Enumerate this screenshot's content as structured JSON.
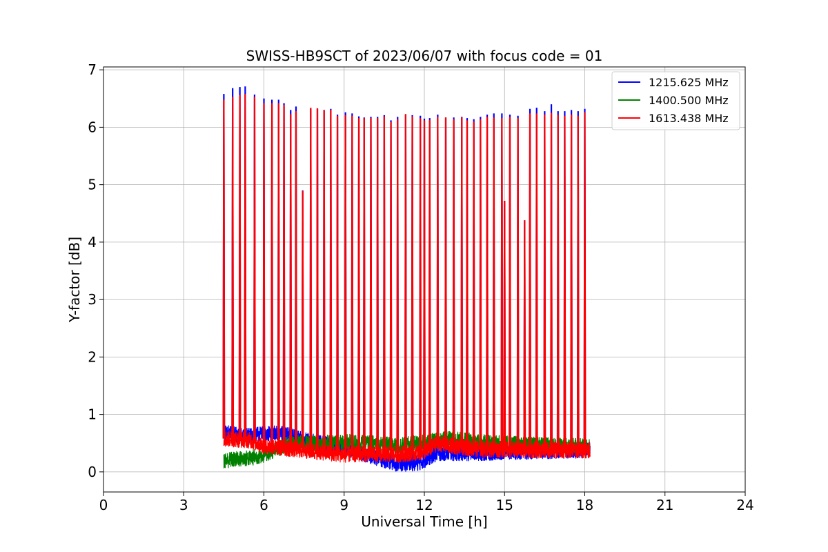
{
  "chart_data": {
    "type": "line",
    "title": "SWISS-HB9SCT of 2023/06/07 with focus code = 01",
    "xlabel": "Universal Time [h]",
    "ylabel": "Y-factor [dB]",
    "xlim": [
      0,
      24
    ],
    "ylim": [
      -0.35,
      7.05
    ],
    "xticks": [
      0,
      3,
      6,
      9,
      12,
      15,
      18,
      21,
      24
    ],
    "yticks": [
      0,
      1,
      2,
      3,
      4,
      5,
      6,
      7
    ],
    "grid": true,
    "legend_position": "top-right",
    "series": [
      {
        "name": "1215.625 MHz",
        "color": "#0000ff",
        "baseline": [
          [
            4.5,
            0.68
          ],
          [
            5.5,
            0.62
          ],
          [
            6.0,
            0.66
          ],
          [
            6.6,
            0.68
          ],
          [
            7.5,
            0.55
          ],
          [
            9.0,
            0.42
          ],
          [
            10.0,
            0.28
          ],
          [
            11.0,
            0.14
          ],
          [
            11.8,
            0.16
          ],
          [
            12.5,
            0.33
          ],
          [
            14.0,
            0.33
          ],
          [
            16.0,
            0.36
          ],
          [
            18.2,
            0.38
          ]
        ],
        "noise": 0.14,
        "peaks": [
          [
            4.5,
            6.58
          ],
          [
            4.83,
            6.68
          ],
          [
            5.1,
            6.7
          ],
          [
            5.3,
            6.71
          ],
          [
            5.65,
            6.57
          ],
          [
            6.0,
            6.5
          ],
          [
            6.3,
            6.48
          ],
          [
            6.55,
            6.48
          ],
          [
            6.75,
            6.42
          ],
          [
            7.0,
            6.3
          ],
          [
            7.2,
            6.36
          ],
          [
            7.45,
            4.9
          ],
          [
            7.75,
            6.32
          ],
          [
            8.0,
            6.32
          ],
          [
            8.25,
            6.3
          ],
          [
            8.5,
            6.32
          ],
          [
            8.75,
            6.22
          ],
          [
            9.05,
            6.26
          ],
          [
            9.3,
            6.24
          ],
          [
            9.55,
            6.19
          ],
          [
            9.75,
            6.17
          ],
          [
            10.0,
            6.18
          ],
          [
            10.25,
            6.18
          ],
          [
            10.5,
            6.21
          ],
          [
            10.75,
            6.12
          ],
          [
            11.0,
            6.18
          ],
          [
            11.3,
            6.22
          ],
          [
            11.55,
            6.21
          ],
          [
            11.85,
            6.2
          ],
          [
            12.0,
            6.15
          ],
          [
            12.2,
            6.16
          ],
          [
            12.5,
            6.22
          ],
          [
            12.8,
            6.17
          ],
          [
            13.1,
            6.17
          ],
          [
            13.4,
            6.18
          ],
          [
            13.6,
            6.16
          ],
          [
            13.85,
            6.14
          ],
          [
            14.1,
            6.18
          ],
          [
            14.35,
            6.22
          ],
          [
            14.6,
            6.24
          ],
          [
            14.9,
            6.24
          ],
          [
            15.0,
            4.72
          ],
          [
            15.2,
            6.22
          ],
          [
            15.5,
            6.2
          ],
          [
            15.75,
            4.38
          ],
          [
            15.95,
            6.32
          ],
          [
            16.2,
            6.34
          ],
          [
            16.5,
            6.28
          ],
          [
            16.75,
            6.4
          ],
          [
            17.0,
            6.28
          ],
          [
            17.25,
            6.28
          ],
          [
            17.5,
            6.3
          ],
          [
            17.75,
            6.28
          ],
          [
            18.0,
            6.32
          ]
        ]
      },
      {
        "name": "1400.500 MHz",
        "color": "#008000",
        "baseline": [
          [
            4.5,
            0.2
          ],
          [
            5.0,
            0.22
          ],
          [
            5.5,
            0.24
          ],
          [
            6.0,
            0.3
          ],
          [
            7.0,
            0.5
          ],
          [
            8.0,
            0.5
          ],
          [
            9.0,
            0.52
          ],
          [
            10.0,
            0.5
          ],
          [
            11.0,
            0.45
          ],
          [
            12.0,
            0.52
          ],
          [
            13.0,
            0.58
          ],
          [
            14.0,
            0.52
          ],
          [
            16.0,
            0.47
          ],
          [
            18.2,
            0.44
          ]
        ],
        "noise": 0.14,
        "peaks": []
      },
      {
        "name": "1613.438 MHz",
        "color": "#ff0000",
        "baseline": [
          [
            4.5,
            0.58
          ],
          [
            5.5,
            0.55
          ],
          [
            6.0,
            0.45
          ],
          [
            7.0,
            0.4
          ],
          [
            8.0,
            0.35
          ],
          [
            9.0,
            0.3
          ],
          [
            10.0,
            0.32
          ],
          [
            11.0,
            0.3
          ],
          [
            12.0,
            0.35
          ],
          [
            12.5,
            0.5
          ],
          [
            13.0,
            0.45
          ],
          [
            14.0,
            0.4
          ],
          [
            16.0,
            0.38
          ],
          [
            18.2,
            0.38
          ]
        ],
        "noise": 0.14,
        "peaks": [
          [
            4.5,
            6.48
          ],
          [
            4.83,
            6.53
          ],
          [
            5.1,
            6.56
          ],
          [
            5.3,
            6.58
          ],
          [
            5.65,
            6.53
          ],
          [
            6.0,
            6.42
          ],
          [
            6.3,
            6.42
          ],
          [
            6.55,
            6.42
          ],
          [
            6.75,
            6.39
          ],
          [
            7.0,
            6.23
          ],
          [
            7.2,
            6.28
          ],
          [
            7.45,
            4.89
          ],
          [
            7.75,
            6.34
          ],
          [
            8.0,
            6.33
          ],
          [
            8.25,
            6.3
          ],
          [
            8.5,
            6.3
          ],
          [
            8.75,
            6.2
          ],
          [
            9.05,
            6.21
          ],
          [
            9.3,
            6.2
          ],
          [
            9.55,
            6.16
          ],
          [
            9.75,
            6.16
          ],
          [
            10.0,
            6.16
          ],
          [
            10.25,
            6.16
          ],
          [
            10.5,
            6.19
          ],
          [
            10.75,
            6.09
          ],
          [
            11.0,
            6.14
          ],
          [
            11.3,
            6.23
          ],
          [
            11.55,
            6.19
          ],
          [
            11.85,
            6.16
          ],
          [
            12.0,
            6.12
          ],
          [
            12.2,
            6.13
          ],
          [
            12.5,
            6.18
          ],
          [
            12.8,
            6.17
          ],
          [
            13.1,
            6.14
          ],
          [
            13.4,
            6.17
          ],
          [
            13.6,
            6.12
          ],
          [
            13.85,
            6.1
          ],
          [
            14.1,
            6.14
          ],
          [
            14.35,
            6.18
          ],
          [
            14.6,
            6.17
          ],
          [
            14.9,
            6.16
          ],
          [
            15.0,
            4.72
          ],
          [
            15.2,
            6.18
          ],
          [
            15.5,
            6.16
          ],
          [
            15.75,
            4.38
          ],
          [
            15.95,
            6.24
          ],
          [
            16.2,
            6.24
          ],
          [
            16.5,
            6.22
          ],
          [
            16.75,
            6.25
          ],
          [
            17.0,
            6.22
          ],
          [
            17.25,
            6.2
          ],
          [
            17.5,
            6.22
          ],
          [
            17.75,
            6.2
          ],
          [
            18.0,
            6.26
          ]
        ]
      }
    ]
  }
}
